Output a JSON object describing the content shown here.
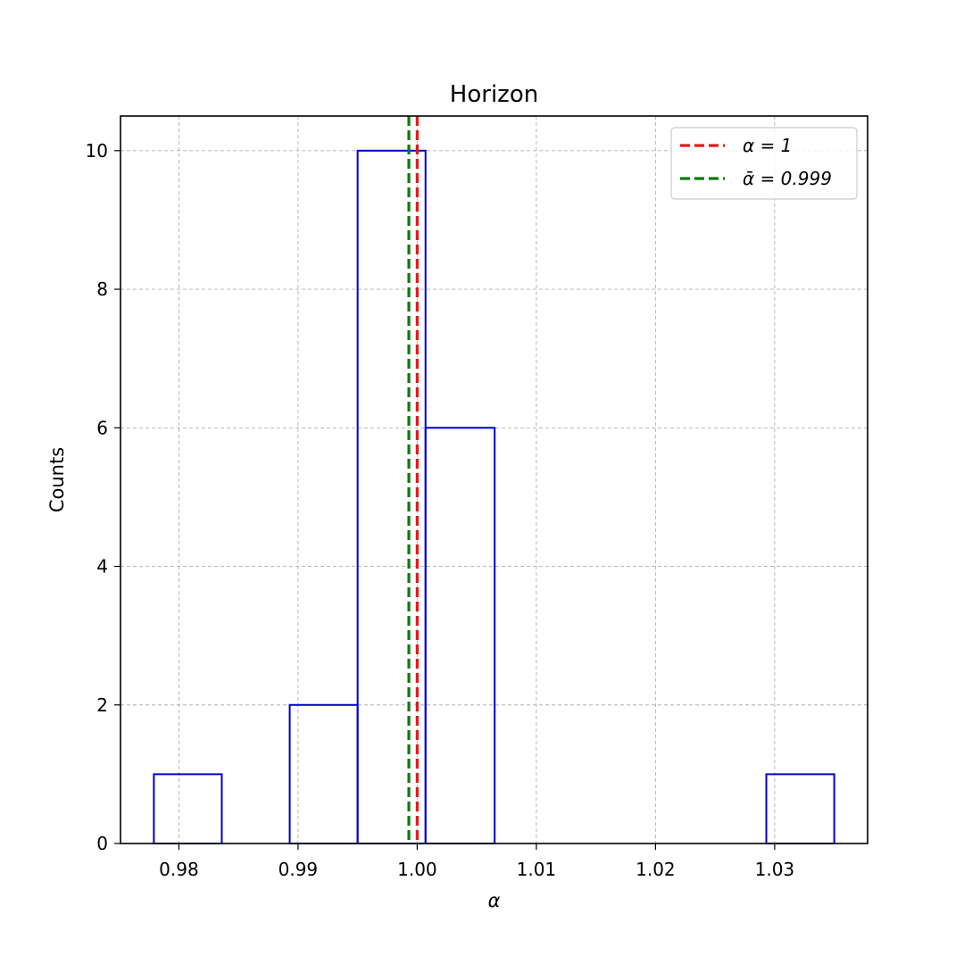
{
  "chart_data": {
    "type": "bar",
    "title": "Horizon",
    "xlabel": "α",
    "ylabel": "Counts",
    "xlim": [
      0.9751,
      1.0378
    ],
    "ylim": [
      0,
      10.5
    ],
    "xticks": [
      0.98,
      0.99,
      1.0,
      1.01,
      1.02,
      1.03
    ],
    "xtick_labels": [
      "0.98",
      "0.99",
      "1.00",
      "1.01",
      "1.02",
      "1.03"
    ],
    "yticks": [
      0,
      2,
      4,
      6,
      8,
      10
    ],
    "ytick_labels": [
      "0",
      "2",
      "4",
      "6",
      "8",
      "10"
    ],
    "grid": true,
    "histogram": {
      "bin_edges": [
        0.9779,
        0.9836,
        0.9893,
        0.995,
        1.0007,
        1.0065,
        1.0122,
        1.0179,
        1.0236,
        1.0293,
        1.035
      ],
      "counts": [
        1,
        0,
        2,
        10,
        6,
        0,
        0,
        0,
        0,
        1
      ],
      "color": "#0000cc"
    },
    "reference_lines": [
      {
        "x": 1.0,
        "label": "α = 1",
        "color": "#e31a1c",
        "style": "dashed"
      },
      {
        "x": 0.9993,
        "label": "ᾱ = 0.999",
        "color": "#0a7a0a",
        "style": "dashed"
      }
    ],
    "legend_position": "top-right"
  }
}
